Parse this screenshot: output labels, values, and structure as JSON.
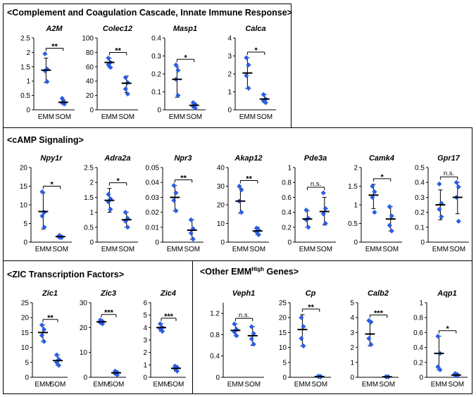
{
  "panels": [
    {
      "key": "p1",
      "title": "<Complement and Coagulation Cascade, Innate Immune Response>"
    },
    {
      "key": "p2",
      "title": "<cAMP Signaling>"
    },
    {
      "key": "p3",
      "title": "<ZIC Transcription Factors>"
    },
    {
      "key": "p4",
      "title_pre": "<Other EMM",
      "title_sup": "High",
      "title_post": " Genes>"
    }
  ],
  "colors": {
    "points": "#2a5ee8",
    "bars": "#000000",
    "axis": "#000000"
  },
  "chart_data": [
    {
      "type": "scatter",
      "panel": "p1",
      "title": "A2M",
      "categories": [
        "EMM",
        "SOM"
      ],
      "ylim": [
        0,
        2.5
      ],
      "yticks": [
        "0",
        "0.5",
        "1",
        "1.5",
        "2",
        "2.5"
      ],
      "groups": [
        {
          "name": "EMM",
          "points": [
            1.95,
            1.42,
            1.36,
            0.98
          ],
          "mean": 1.38,
          "error": [
            0.95,
            1.8
          ]
        },
        {
          "name": "SOM",
          "points": [
            0.4,
            0.27,
            0.25,
            0.2
          ],
          "mean": 0.26,
          "error": [
            0.2,
            0.35
          ]
        }
      ],
      "significance": "**"
    },
    {
      "type": "scatter",
      "panel": "p1",
      "title": "Colec12",
      "categories": [
        "EMM",
        "SOM"
      ],
      "ylim": [
        0,
        100
      ],
      "yticks": [
        "0",
        "20",
        "40",
        "60",
        "80",
        "100"
      ],
      "groups": [
        {
          "name": "EMM",
          "points": [
            72,
            66,
            63,
            59
          ],
          "mean": 66,
          "error": [
            60,
            72
          ]
        },
        {
          "name": "SOM",
          "points": [
            45,
            38,
            29,
            22
          ],
          "mean": 37,
          "error": [
            24,
            47
          ]
        }
      ],
      "significance": "**"
    },
    {
      "type": "scatter",
      "panel": "p1",
      "title": "Masp1",
      "categories": [
        "EMM",
        "SOM"
      ],
      "ylim": [
        0,
        0.4
      ],
      "yticks": [
        "0",
        "0.1",
        "0.2",
        "0.3",
        "0.4"
      ],
      "groups": [
        {
          "name": "EMM",
          "points": [
            0.25,
            0.22,
            0.17,
            0.08
          ],
          "mean": 0.17,
          "error": [
            0.07,
            0.24
          ]
        },
        {
          "name": "SOM",
          "points": [
            0.04,
            0.03,
            0.02,
            0.01
          ],
          "mean": 0.025,
          "error": [
            0.01,
            0.04
          ]
        }
      ],
      "significance": "*"
    },
    {
      "type": "scatter",
      "panel": "p1",
      "title": "Calca",
      "categories": [
        "EMM",
        "SOM"
      ],
      "ylim": [
        0,
        4
      ],
      "yticks": [
        "0",
        "1",
        "2",
        "3",
        "4"
      ],
      "groups": [
        {
          "name": "EMM",
          "points": [
            2.9,
            2.5,
            1.9,
            1.2
          ],
          "mean": 2.05,
          "error": [
            1.2,
            2.9
          ]
        },
        {
          "name": "SOM",
          "points": [
            0.85,
            0.6,
            0.5,
            0.4
          ],
          "mean": 0.6,
          "error": [
            0.4,
            0.85
          ]
        }
      ],
      "significance": "*"
    },
    {
      "type": "scatter",
      "panel": "p2",
      "title": "Npy1r",
      "categories": [
        "EMM",
        "SOM"
      ],
      "ylim": [
        0,
        20
      ],
      "yticks": [
        "0",
        "5",
        "10",
        "15",
        "20"
      ],
      "groups": [
        {
          "name": "EMM",
          "points": [
            13.5,
            8,
            7,
            4
          ],
          "mean": 8.2,
          "error": [
            3.5,
            13.2
          ]
        },
        {
          "name": "SOM",
          "points": [
            1.8,
            1.5,
            1.3,
            1.2
          ],
          "mean": 1.5,
          "error": [
            1.2,
            1.8
          ]
        }
      ],
      "significance": "*"
    },
    {
      "type": "scatter",
      "panel": "p2",
      "title": "Adra2a",
      "categories": [
        "EMM",
        "SOM"
      ],
      "ylim": [
        0,
        2.5
      ],
      "yticks": [
        "0",
        "0.5",
        "1",
        "1.5",
        "2",
        "2.5"
      ],
      "groups": [
        {
          "name": "EMM",
          "points": [
            1.6,
            1.45,
            1.35,
            1.1
          ],
          "mean": 1.4,
          "error": [
            1.0,
            1.8
          ]
        },
        {
          "name": "SOM",
          "points": [
            1.0,
            0.8,
            0.7,
            0.5
          ],
          "mean": 0.75,
          "error": [
            0.5,
            1.0
          ]
        }
      ],
      "significance": "*"
    },
    {
      "type": "scatter",
      "panel": "p2",
      "title": "Npr3",
      "categories": [
        "EMM",
        "SOM"
      ],
      "ylim": [
        0,
        0.05
      ],
      "yticks": [
        "0",
        "0.01",
        "0.02",
        "0.03",
        "0.04",
        "0.05"
      ],
      "groups": [
        {
          "name": "EMM",
          "points": [
            0.038,
            0.033,
            0.028,
            0.021
          ],
          "mean": 0.03,
          "error": [
            0.021,
            0.038
          ]
        },
        {
          "name": "SOM",
          "points": [
            0.015,
            0.009,
            0.006,
            0.002
          ],
          "mean": 0.008,
          "error": [
            0.002,
            0.015
          ]
        }
      ],
      "significance": "**"
    },
    {
      "type": "scatter",
      "panel": "p2",
      "title": "Akap12",
      "categories": [
        "EMM",
        "SOM"
      ],
      "ylim": [
        0,
        40
      ],
      "yticks": [
        "0",
        "10",
        "20",
        "30",
        "40"
      ],
      "groups": [
        {
          "name": "EMM",
          "points": [
            30,
            28,
            22,
            16
          ],
          "mean": 22,
          "error": [
            15.5,
            29
          ]
        },
        {
          "name": "SOM",
          "points": [
            7.5,
            6.5,
            5.5,
            4
          ],
          "mean": 6,
          "error": [
            4,
            8
          ]
        }
      ],
      "significance": "**"
    },
    {
      "type": "scatter",
      "panel": "p2",
      "title": "Pde3a",
      "categories": [
        "EMM",
        "SOM"
      ],
      "ylim": [
        0,
        1
      ],
      "yticks": [
        "0",
        "0.2",
        "0.4",
        "0.6",
        "0.8",
        "1"
      ],
      "groups": [
        {
          "name": "EMM",
          "points": [
            0.43,
            0.32,
            0.3,
            0.2
          ],
          "mean": 0.31,
          "error": [
            0.2,
            0.42
          ]
        },
        {
          "name": "SOM",
          "points": [
            0.66,
            0.45,
            0.38,
            0.25
          ],
          "mean": 0.41,
          "error": [
            0.23,
            0.6
          ]
        }
      ],
      "significance": "n.s."
    },
    {
      "type": "scatter",
      "panel": "p2",
      "title": "Camk4",
      "categories": [
        "EMM",
        "SOM"
      ],
      "ylim": [
        0,
        2
      ],
      "yticks": [
        "0",
        "0.5",
        "1",
        "1.5",
        "2"
      ],
      "groups": [
        {
          "name": "EMM",
          "points": [
            1.5,
            1.35,
            1.2,
            0.8
          ],
          "mean": 1.26,
          "error": [
            0.9,
            1.55
          ]
        },
        {
          "name": "SOM",
          "points": [
            0.95,
            0.7,
            0.45,
            0.3
          ],
          "mean": 0.62,
          "error": [
            0.3,
            0.95
          ]
        }
      ],
      "significance": "*"
    },
    {
      "type": "scatter",
      "panel": "p2",
      "title": "Gpr17",
      "categories": [
        "EMM",
        "SOM"
      ],
      "ylim": [
        0,
        0.5
      ],
      "yticks": [
        "0",
        "0.1",
        "0.2",
        "0.3",
        "0.4",
        "0.5"
      ],
      "groups": [
        {
          "name": "EMM",
          "points": [
            0.39,
            0.26,
            0.22,
            0.17
          ],
          "mean": 0.25,
          "error": [
            0.15,
            0.35
          ]
        },
        {
          "name": "SOM",
          "points": [
            0.4,
            0.37,
            0.3,
            0.14
          ],
          "mean": 0.3,
          "error": [
            0.19,
            0.4
          ]
        }
      ],
      "significance": "n.s."
    },
    {
      "type": "scatter",
      "panel": "p3",
      "title": "Zic1",
      "categories": [
        "EMM",
        "SOM"
      ],
      "ylim": [
        0,
        25
      ],
      "yticks": [
        "0",
        "5",
        "10",
        "15",
        "20",
        "25"
      ],
      "groups": [
        {
          "name": "EMM",
          "points": [
            17.5,
            16,
            14,
            12
          ],
          "mean": 15,
          "error": [
            12,
            17.5
          ]
        },
        {
          "name": "SOM",
          "points": [
            7.5,
            6,
            5,
            4
          ],
          "mean": 5.6,
          "error": [
            4,
            7.5
          ]
        }
      ],
      "significance": "**"
    },
    {
      "type": "scatter",
      "panel": "p3",
      "title": "Zic3",
      "categories": [
        "EMM",
        "SOM"
      ],
      "ylim": [
        0,
        30
      ],
      "yticks": [
        "0",
        "10",
        "20",
        "30"
      ],
      "groups": [
        {
          "name": "EMM",
          "points": [
            23,
            22.5,
            22,
            21.5
          ],
          "mean": 22.3,
          "error": [
            21.5,
            23
          ]
        },
        {
          "name": "SOM",
          "points": [
            2.5,
            2,
            1.5,
            1
          ],
          "mean": 1.8,
          "error": [
            1,
            2.6
          ]
        }
      ],
      "significance": "***"
    },
    {
      "type": "scatter",
      "panel": "p3",
      "title": "Zic4",
      "categories": [
        "EMM",
        "SOM"
      ],
      "ylim": [
        0,
        6
      ],
      "yticks": [
        "0",
        "1",
        "2",
        "3",
        "4",
        "5",
        "6"
      ],
      "groups": [
        {
          "name": "EMM",
          "points": [
            4.3,
            4.0,
            3.9,
            3.7
          ],
          "mean": 4.0,
          "error": [
            3.7,
            4.3
          ]
        },
        {
          "name": "SOM",
          "points": [
            0.9,
            0.8,
            0.7,
            0.5
          ],
          "mean": 0.72,
          "error": [
            0.5,
            0.95
          ]
        }
      ],
      "significance": "***"
    },
    {
      "type": "scatter",
      "panel": "p4",
      "title": "Veph1",
      "categories": [
        "EMM",
        "SOM"
      ],
      "ylim": [
        0,
        1.4
      ],
      "yticks": [
        "0",
        "0.4",
        "0.8",
        "1.2"
      ],
      "groups": [
        {
          "name": "EMM",
          "points": [
            1.0,
            0.9,
            0.85,
            0.78
          ],
          "mean": 0.88,
          "error": [
            0.78,
            1.0
          ]
        },
        {
          "name": "SOM",
          "points": [
            0.95,
            0.82,
            0.72,
            0.62
          ],
          "mean": 0.78,
          "error": [
            0.6,
            0.95
          ]
        }
      ],
      "significance": "n.s."
    },
    {
      "type": "scatter",
      "panel": "p4",
      "title": "Cp",
      "categories": [
        "EMM",
        "SOM"
      ],
      "ylim": [
        0,
        25
      ],
      "yticks": [
        "0",
        "5",
        "10",
        "15",
        "20",
        "25"
      ],
      "groups": [
        {
          "name": "EMM",
          "points": [
            20,
            17,
            13,
            10.5
          ],
          "mean": 16,
          "error": [
            10.5,
            21
          ]
        },
        {
          "name": "SOM",
          "points": [
            0.4,
            0.3,
            0.2,
            0.1
          ],
          "mean": 0.25,
          "error": [
            0.1,
            0.4
          ]
        }
      ],
      "significance": "**"
    },
    {
      "type": "scatter",
      "panel": "p4",
      "title": "Calb2",
      "categories": [
        "EMM",
        "SOM"
      ],
      "ylim": [
        0,
        5
      ],
      "yticks": [
        "0",
        "1",
        "2",
        "3",
        "4",
        "5"
      ],
      "groups": [
        {
          "name": "EMM",
          "points": [
            3.8,
            3.7,
            2.6,
            2.2
          ],
          "mean": 2.9,
          "error": [
            2.1,
            3.8
          ]
        },
        {
          "name": "SOM",
          "points": [
            0.05,
            0.04,
            0.03,
            0.02
          ],
          "mean": 0.03,
          "error": [
            0.02,
            0.05
          ]
        }
      ],
      "significance": "***"
    },
    {
      "type": "scatter",
      "panel": "p4",
      "title": "Aqp1",
      "categories": [
        "EMM",
        "SOM"
      ],
      "ylim": [
        0,
        1
      ],
      "yticks": [
        "0",
        "0.2",
        "0.4",
        "0.6",
        "0.8",
        "1"
      ],
      "groups": [
        {
          "name": "EMM",
          "points": [
            0.55,
            0.32,
            0.14,
            0.1
          ],
          "mean": 0.32,
          "error": [
            0.1,
            0.55
          ]
        },
        {
          "name": "SOM",
          "points": [
            0.05,
            0.04,
            0.03,
            0.02
          ],
          "mean": 0.03,
          "error": [
            0.02,
            0.05
          ]
        }
      ],
      "significance": "*"
    }
  ]
}
